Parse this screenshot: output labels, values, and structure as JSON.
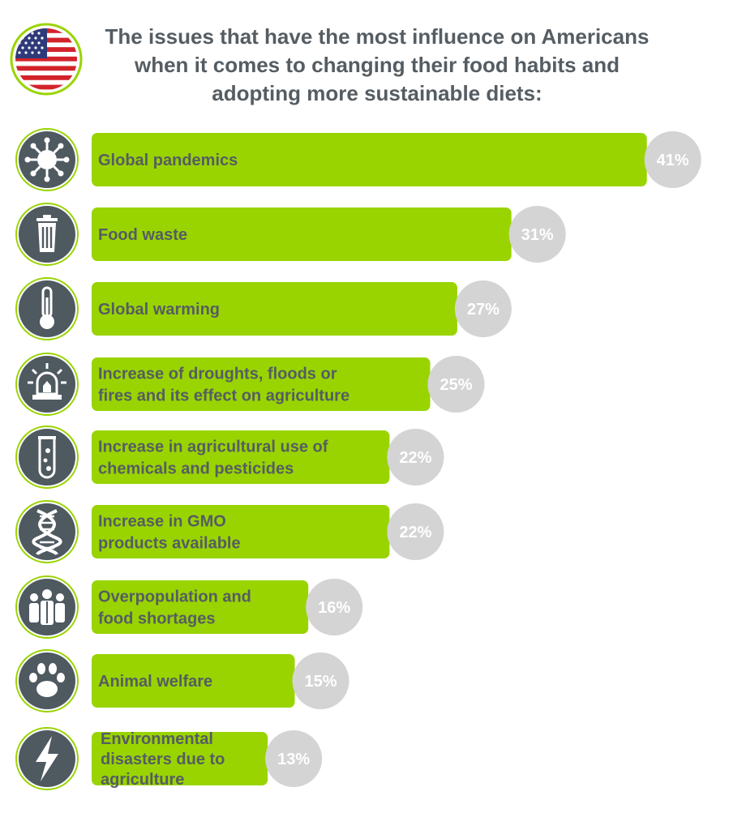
{
  "title": "The issues that have the most influence on Americans when it comes to changing their food habits and adopting more sustainable diets:",
  "colors": {
    "bar": "#99d400",
    "text": "#555d63",
    "icon_fill": "#4f5960",
    "icon_ring": "#99d400",
    "bubble": "#d4d4d4",
    "bubble_text": "#ffffff"
  },
  "chart_data": {
    "type": "bar",
    "orientation": "horizontal",
    "categories": [
      "Global pandemics",
      "Food waste",
      "Global warming",
      "Increase of droughts, floods or fires and its effect on agriculture",
      "Increase in agricultural use of chemicals and pesticides",
      "Increase in GMO products available",
      "Overpopulation and food shortages",
      "Animal welfare",
      "Environmental disasters due to agriculture"
    ],
    "category_lines": [
      [
        "Global pandemics"
      ],
      [
        "Food waste"
      ],
      [
        "Global warming"
      ],
      [
        "Increase of droughts, floods or",
        "fires and its effect on agriculture"
      ],
      [
        "Increase in agricultural use of",
        "chemicals and pesticides"
      ],
      [
        "Increase in GMO",
        "products available"
      ],
      [
        "Overpopulation and",
        "food shortages"
      ],
      [
        "Animal welfare"
      ],
      [
        "Environmental",
        "disasters due to",
        "agriculture"
      ]
    ],
    "values": [
      41,
      31,
      27,
      25,
      22,
      22,
      16,
      15,
      13
    ],
    "value_labels": [
      "41%",
      "31%",
      "27%",
      "25%",
      "22%",
      "22%",
      "16%",
      "15%",
      "13%"
    ],
    "icons": [
      "virus-icon",
      "trash-bin-icon",
      "thermometer-icon",
      "alarm-siren-icon",
      "test-tube-icon",
      "dna-icon",
      "people-group-icon",
      "paw-icon",
      "lightning-bolt-icon"
    ],
    "unit": "%",
    "legend": false,
    "grid": false
  }
}
